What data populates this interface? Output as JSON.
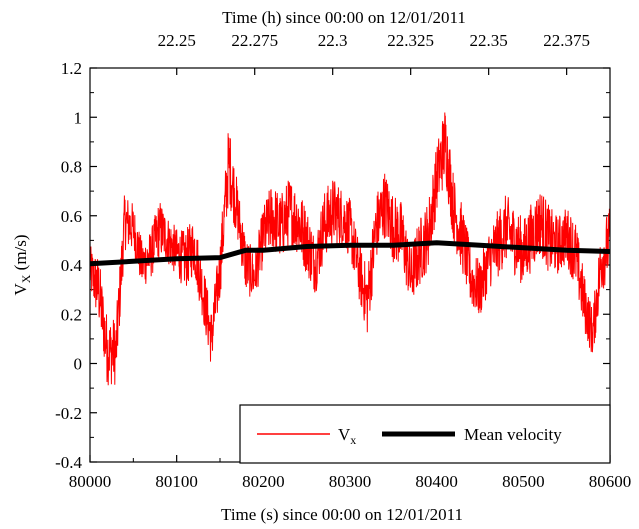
{
  "chart_data": {
    "type": "line",
    "title": "",
    "xlabel": "Time (s) since 00:00 on 12/01/2011",
    "x2label": "Time (h) since 00:00 on 12/01/2011",
    "ylabel": "V",
    "ylabel_sub": "X",
    "ylabel_unit": " (m/s)",
    "xlim": [
      80000,
      80600
    ],
    "ylim": [
      -0.4,
      1.2
    ],
    "x2lim": [
      22.2222,
      22.3889
    ],
    "xticks": [
      80000,
      80100,
      80200,
      80300,
      80400,
      80500,
      80600
    ],
    "xtick_labels": [
      "80000",
      "80100",
      "80200",
      "80300",
      "80400",
      "80500",
      "80600"
    ],
    "yticks": [
      -0.4,
      -0.2,
      0,
      0.2,
      0.4,
      0.6,
      0.8,
      1,
      1.2
    ],
    "ytick_labels": [
      "-0.4",
      "-0.2",
      "0",
      "0.2",
      "0.4",
      "0.6",
      "0.8",
      "1",
      "1.2"
    ],
    "x2ticks": [
      22.25,
      22.275,
      22.3,
      22.325,
      22.35,
      22.375
    ],
    "x2tick_labels": [
      "22.25",
      "22.275",
      "22.3",
      "22.325",
      "22.35",
      "22.375"
    ],
    "grid": false,
    "legend_position": "bottom-right",
    "series": [
      {
        "name": "V",
        "name_sub": "x",
        "color": "#ff0000",
        "style": "thin",
        "envelope": {
          "x": [
            80000,
            80010,
            80020,
            80030,
            80040,
            80050,
            80060,
            80070,
            80080,
            80090,
            80100,
            80110,
            80120,
            80130,
            80140,
            80150,
            80160,
            80170,
            80180,
            80190,
            80200,
            80210,
            80220,
            80230,
            80240,
            80250,
            80260,
            80270,
            80280,
            80290,
            80300,
            80310,
            80320,
            80330,
            80340,
            80350,
            80360,
            80370,
            80380,
            80390,
            80400,
            80410,
            80420,
            80430,
            80440,
            80450,
            80460,
            80470,
            80480,
            80490,
            80500,
            80510,
            80520,
            80530,
            80540,
            80550,
            80560,
            80570,
            80580,
            80590,
            80600
          ],
          "center": [
            0.38,
            0.3,
            0.05,
            0.05,
            0.58,
            0.55,
            0.4,
            0.44,
            0.55,
            0.5,
            0.45,
            0.42,
            0.48,
            0.3,
            0.1,
            0.38,
            0.82,
            0.62,
            0.4,
            0.35,
            0.52,
            0.6,
            0.55,
            0.62,
            0.58,
            0.5,
            0.4,
            0.56,
            0.62,
            0.6,
            0.55,
            0.38,
            0.25,
            0.55,
            0.65,
            0.55,
            0.52,
            0.35,
            0.45,
            0.52,
            0.75,
            0.9,
            0.62,
            0.5,
            0.34,
            0.3,
            0.42,
            0.48,
            0.55,
            0.5,
            0.45,
            0.52,
            0.58,
            0.5,
            0.48,
            0.52,
            0.45,
            0.25,
            0.12,
            0.42,
            0.5
          ],
          "spread": [
            0.1,
            0.14,
            0.14,
            0.14,
            0.12,
            0.1,
            0.1,
            0.1,
            0.12,
            0.1,
            0.1,
            0.12,
            0.12,
            0.12,
            0.12,
            0.12,
            0.16,
            0.12,
            0.12,
            0.1,
            0.12,
            0.14,
            0.14,
            0.14,
            0.14,
            0.14,
            0.12,
            0.14,
            0.14,
            0.12,
            0.12,
            0.12,
            0.14,
            0.14,
            0.14,
            0.14,
            0.14,
            0.12,
            0.14,
            0.14,
            0.14,
            0.16,
            0.14,
            0.14,
            0.12,
            0.12,
            0.12,
            0.14,
            0.14,
            0.14,
            0.14,
            0.14,
            0.14,
            0.14,
            0.12,
            0.12,
            0.14,
            0.12,
            0.1,
            0.14,
            0.14
          ]
        }
      },
      {
        "name": "Mean velocity",
        "color": "#000000",
        "style": "thick",
        "x": [
          80000,
          80050,
          80100,
          80150,
          80180,
          80200,
          80250,
          80300,
          80350,
          80400,
          80450,
          80500,
          80550,
          80600
        ],
        "y": [
          0.405,
          0.415,
          0.425,
          0.43,
          0.46,
          0.46,
          0.475,
          0.48,
          0.48,
          0.49,
          0.48,
          0.47,
          0.46,
          0.455
        ]
      }
    ]
  }
}
